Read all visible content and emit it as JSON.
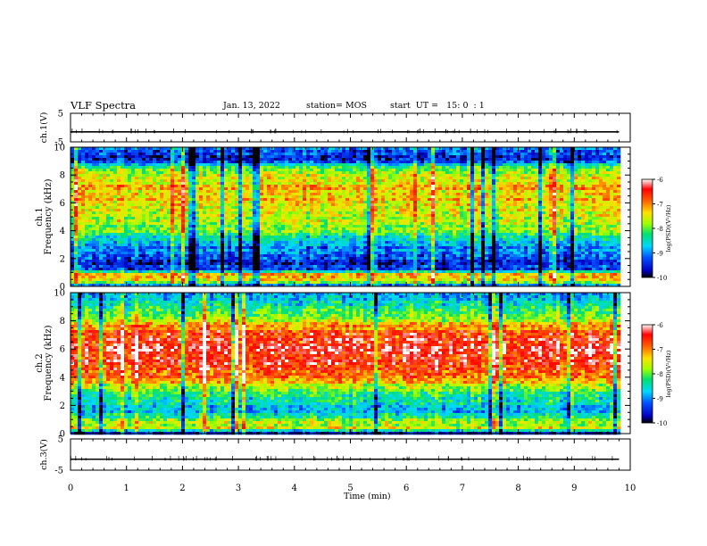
{
  "header": {
    "title": "VLF Spectra",
    "date": "Jan. 13, 2022",
    "station": "station= MOS",
    "start": "start  UT =   15: 0  : 1"
  },
  "chart_data": [
    {
      "type": "line",
      "panel": "ch1-waveform",
      "ylabel": "ch.1(V)",
      "ylim": [
        -5,
        5
      ],
      "yticks": [
        "5",
        "-5"
      ],
      "xlim": [
        0,
        10
      ],
      "series": [
        {
          "values_x": [
            0,
            9.8
          ],
          "values_y": [
            -1.5,
            -1.5
          ]
        }
      ],
      "color": "#000000"
    },
    {
      "type": "heatmap",
      "panel": "ch1-spectrogram",
      "ylabel": "ch.1\nFrequency (kHz)",
      "ylim": [
        0,
        10
      ],
      "yticks": [
        "0",
        "2",
        "4",
        "6",
        "8",
        "10"
      ],
      "xlim": [
        0,
        10
      ],
      "data_extent_x": [
        0,
        9.8
      ],
      "colorbar": {
        "label": "log(PSD)(V²/Hz)",
        "range": [
          -10,
          -6
        ],
        "ticks": [
          "-6",
          "-7",
          "-8",
          "-9",
          "-10"
        ]
      },
      "profile": [
        {
          "f": 0.0,
          "v": -9.5
        },
        {
          "f": 0.3,
          "v": -7.8
        },
        {
          "f": 0.8,
          "v": -7.0
        },
        {
          "f": 1.2,
          "v": -9.3
        },
        {
          "f": 1.8,
          "v": -9.6
        },
        {
          "f": 2.2,
          "v": -9.2
        },
        {
          "f": 2.8,
          "v": -9.0
        },
        {
          "f": 3.4,
          "v": -8.5
        },
        {
          "f": 4.0,
          "v": -7.9
        },
        {
          "f": 5.0,
          "v": -7.6
        },
        {
          "f": 6.0,
          "v": -7.4
        },
        {
          "f": 7.0,
          "v": -7.3
        },
        {
          "f": 8.0,
          "v": -7.5
        },
        {
          "f": 8.5,
          "v": -8.0
        },
        {
          "f": 9.0,
          "v": -9.6
        },
        {
          "f": 9.5,
          "v": -9.3
        },
        {
          "f": 10.0,
          "v": -9.1
        }
      ]
    },
    {
      "type": "heatmap",
      "panel": "ch2-spectrogram",
      "ylabel": "ch.2\nFrequency (kHz)",
      "ylim": [
        0,
        10
      ],
      "yticks": [
        "0",
        "2",
        "4",
        "6",
        "8",
        "10"
      ],
      "xlim": [
        0,
        10
      ],
      "data_extent_x": [
        0,
        9.8
      ],
      "colorbar": {
        "label": "log(PSD)(V²/Hz)",
        "range": [
          -10,
          -6
        ],
        "ticks": [
          "-6",
          "-7",
          "-8",
          "-9",
          "-10"
        ]
      },
      "profile": [
        {
          "f": 0.0,
          "v": -9.6
        },
        {
          "f": 0.4,
          "v": -7.6
        },
        {
          "f": 0.9,
          "v": -7.9
        },
        {
          "f": 1.5,
          "v": -8.8
        },
        {
          "f": 2.0,
          "v": -8.6
        },
        {
          "f": 2.6,
          "v": -8.4
        },
        {
          "f": 3.2,
          "v": -7.9
        },
        {
          "f": 3.8,
          "v": -7.2
        },
        {
          "f": 4.5,
          "v": -6.7
        },
        {
          "f": 5.5,
          "v": -6.4
        },
        {
          "f": 6.5,
          "v": -6.5
        },
        {
          "f": 7.4,
          "v": -6.9
        },
        {
          "f": 8.0,
          "v": -7.6
        },
        {
          "f": 8.6,
          "v": -8.2
        },
        {
          "f": 9.2,
          "v": -8.6
        },
        {
          "f": 10.0,
          "v": -8.8
        }
      ]
    },
    {
      "type": "line",
      "panel": "ch3-waveform",
      "ylabel": "ch.3(V)",
      "ylim": [
        -5,
        5
      ],
      "yticks": [
        "5",
        "-5"
      ],
      "xlim": [
        0,
        10
      ],
      "series": [
        {
          "values_x": [
            0,
            9.8
          ],
          "values_y": [
            -1.5,
            -1.5
          ]
        }
      ],
      "color": "#000000"
    },
    {
      "type": "axis",
      "panel": "time-axis",
      "xlabel": "Time  (min)",
      "xlim": [
        0,
        10
      ],
      "xticks": [
        "0",
        "1",
        "2",
        "3",
        "4",
        "5",
        "6",
        "7",
        "8",
        "9",
        "10"
      ]
    }
  ]
}
